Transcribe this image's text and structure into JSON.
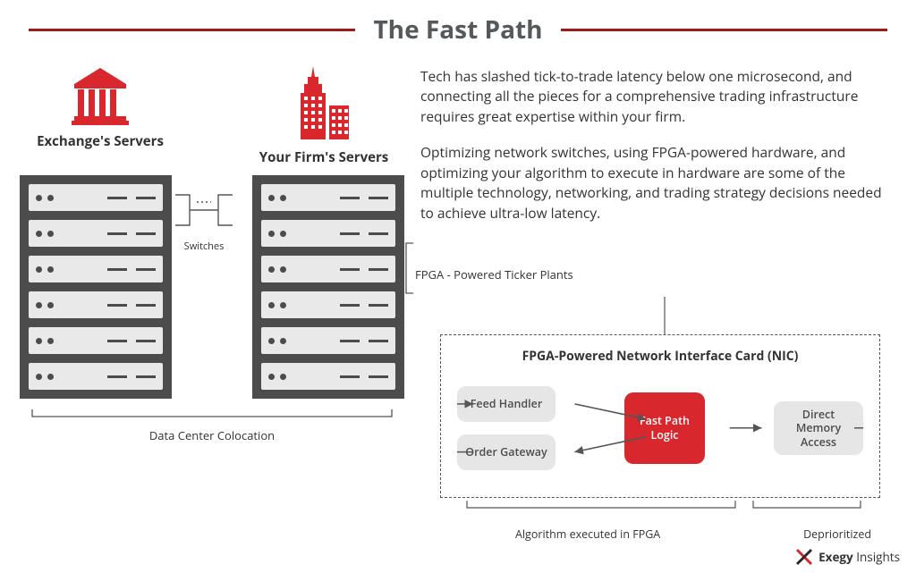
{
  "colors": {
    "accent": "#d9272e",
    "header_rule": "#9a1c1c",
    "title_text": "#55595c",
    "rack_bg": "#4c4c4c",
    "unit_bg": "#e9e9e9",
    "unit_dot": "#4c4c4c",
    "pill_grey": "#e6e6e6",
    "pill_text": "#4c4c4c",
    "arrow": "#555555",
    "bracket": "#555555"
  },
  "title": "The Fast Path",
  "title_fontsize": 28,
  "left": {
    "exchange_label": "Exchange's Servers",
    "firm_label": "Your Firm's Servers",
    "switches_label": "Switches",
    "colocation_label": "Data Center Colocation",
    "rack_units_per_rack": 6
  },
  "paragraphs": [
    "Tech has slashed tick-to-trade latency below one microsecond, and connecting all the pieces for a comprehensive trading infrastructure requires great expertise within your firm.",
    "Optimizing network switches, using FPGA-powered hardware, and optimizing your algorithm to execute in hardware are some of the multiple technology, networking, and trading strategy decisions needed to achieve ultra-low latency."
  ],
  "fpga_callout": "FPGA - Powered Ticker Plants",
  "nic": {
    "title": "FPGA-Powered Network Interface Card (NIC)",
    "feed_handler": "Feed Handler",
    "order_gateway": "Order Gateway",
    "fast_path_logic": "Fast Path Logic",
    "dma": "Direct Memory Access",
    "under_left": "Algorithm executed in FPGA",
    "under_right": "Deprioritized"
  },
  "footer": {
    "brand": "Exegy",
    "sub": "Insights"
  }
}
